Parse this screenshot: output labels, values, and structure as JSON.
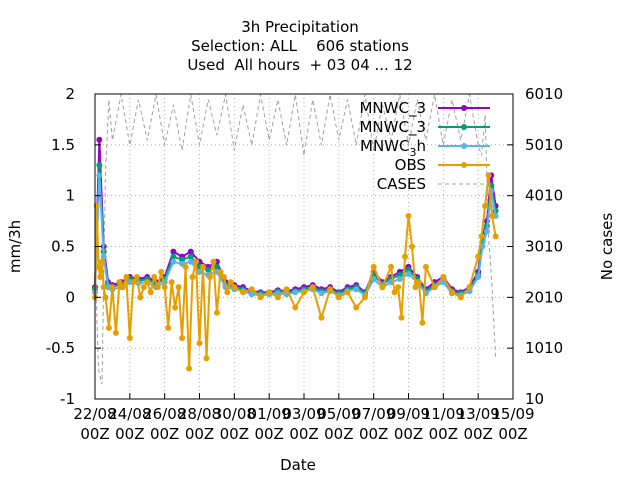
{
  "chart_data": {
    "type": "line",
    "title_lines": [
      "3h Precipitation",
      "Selection: ALL    606 stations",
      "Used  All hours  + 03 04 ... 12"
    ],
    "xlabel": "Date",
    "ylabel": "mm/3h",
    "y2label": "No cases",
    "ylim": [
      -1,
      2
    ],
    "yticks": [
      "-1",
      "-0.5",
      "0",
      "0.5",
      "1",
      "1.5",
      "2"
    ],
    "yticks_values": [
      -1,
      -0.5,
      0,
      0.5,
      1,
      1.5,
      2
    ],
    "y2lim": [
      10,
      6010
    ],
    "y2ticks": [
      "10",
      "1010",
      "2010",
      "3010",
      "4010",
      "5010",
      "6010"
    ],
    "y2ticks_values": [
      10,
      1010,
      2010,
      3010,
      4010,
      5010,
      6010
    ],
    "xticks": [
      "22/08\n00Z",
      "24/08\n00Z",
      "26/08\n00Z",
      "28/08\n00Z",
      "30/08\n00Z",
      "01/09\n00Z",
      "03/09\n00Z",
      "05/09\n00Z",
      "07/09\n00Z",
      "09/09\n00Z",
      "11/09\n00Z",
      "13/09\n00Z",
      "15/09\n00Z"
    ],
    "xticks_days": [
      0,
      2,
      4,
      6,
      8,
      10,
      12,
      14,
      16,
      18,
      20,
      22,
      24
    ],
    "xlim_days": [
      0,
      24
    ],
    "grid": true,
    "legend_position": "top-right",
    "series": [
      {
        "name": "MNWC_3",
        "color": "#9400d3",
        "axis": "y",
        "style": "line-points",
        "x": [
          0,
          0.25,
          0.5,
          0.75,
          1,
          1.5,
          2,
          2.5,
          3,
          3.5,
          4,
          4.5,
          5,
          5.5,
          6,
          6.5,
          7,
          7.5,
          8,
          8.5,
          9,
          9.5,
          10,
          10.5,
          11,
          11.5,
          12,
          12.5,
          13,
          13.5,
          14,
          14.5,
          15,
          15.5,
          16,
          16.5,
          17,
          17.5,
          18,
          18.5,
          19,
          19.5,
          20,
          20.5,
          21,
          21.5,
          22,
          22.25,
          22.5,
          22.75,
          23
        ],
        "y": [
          0.1,
          1.55,
          0.5,
          0.15,
          0.12,
          0.15,
          0.2,
          0.18,
          0.2,
          0.15,
          0.2,
          0.45,
          0.4,
          0.45,
          0.35,
          0.3,
          0.35,
          0.15,
          0.12,
          0.1,
          0.06,
          0.05,
          0.05,
          0.07,
          0.06,
          0.08,
          0.1,
          0.12,
          0.08,
          0.1,
          0.05,
          0.1,
          0.12,
          0.05,
          0.25,
          0.15,
          0.2,
          0.25,
          0.3,
          0.2,
          0.08,
          0.15,
          0.2,
          0.08,
          0.05,
          0.1,
          0.25,
          0.6,
          0.75,
          1.2,
          0.9
        ]
      },
      {
        "name": "MNWC_3",
        "color": "#009e73",
        "axis": "y",
        "style": "line-points",
        "x": [
          0,
          0.25,
          0.5,
          0.75,
          1,
          1.5,
          2,
          2.5,
          3,
          3.5,
          4,
          4.5,
          5,
          5.5,
          6,
          6.5,
          7,
          7.5,
          8,
          8.5,
          9,
          9.5,
          10,
          10.5,
          11,
          11.5,
          12,
          12.5,
          13,
          13.5,
          14,
          14.5,
          15,
          15.5,
          16,
          16.5,
          17,
          17.5,
          18,
          18.5,
          19,
          19.5,
          20,
          20.5,
          21,
          21.5,
          22,
          22.25,
          22.5,
          22.75,
          23
        ],
        "y": [
          0.08,
          1.3,
          0.45,
          0.12,
          0.1,
          0.13,
          0.18,
          0.16,
          0.18,
          0.13,
          0.18,
          0.4,
          0.37,
          0.4,
          0.3,
          0.27,
          0.3,
          0.12,
          0.1,
          0.08,
          0.05,
          0.04,
          0.04,
          0.06,
          0.05,
          0.06,
          0.08,
          0.1,
          0.06,
          0.08,
          0.04,
          0.08,
          0.1,
          0.04,
          0.22,
          0.13,
          0.18,
          0.22,
          0.27,
          0.18,
          0.06,
          0.12,
          0.18,
          0.06,
          0.04,
          0.08,
          0.22,
          0.55,
          0.7,
          1.1,
          0.85
        ]
      },
      {
        "name": "MNWC3h",
        "legend_main": "MNWC",
        "legend_sub": "3",
        "legend_after": "h",
        "color": "#56b4e9",
        "axis": "y",
        "style": "line-points",
        "x": [
          0,
          0.25,
          0.5,
          0.75,
          1,
          1.5,
          2,
          2.5,
          3,
          3.5,
          4,
          4.5,
          5,
          5.5,
          6,
          6.5,
          7,
          7.5,
          8,
          8.5,
          9,
          9.5,
          10,
          10.5,
          11,
          11.5,
          12,
          12.5,
          13,
          13.5,
          14,
          14.5,
          15,
          15.5,
          16,
          16.5,
          17,
          17.5,
          18,
          18.5,
          19,
          19.5,
          20,
          20.5,
          21,
          21.5,
          22,
          22.25,
          22.5,
          22.75,
          23
        ],
        "y": [
          0.05,
          1.2,
          0.4,
          0.1,
          0.08,
          0.1,
          0.15,
          0.14,
          0.15,
          0.1,
          0.15,
          0.35,
          0.33,
          0.35,
          0.25,
          0.22,
          0.25,
          0.1,
          0.08,
          0.06,
          0.03,
          0.02,
          0.03,
          0.04,
          0.03,
          0.05,
          0.06,
          0.08,
          0.04,
          0.06,
          0.02,
          0.06,
          0.08,
          0.02,
          0.18,
          0.1,
          0.15,
          0.18,
          0.23,
          0.15,
          0.04,
          0.1,
          0.15,
          0.04,
          0.02,
          0.06,
          0.2,
          0.5,
          0.65,
          1.05,
          0.8
        ]
      },
      {
        "name": "OBS",
        "color": "#e69f00",
        "axis": "y",
        "style": "line-points",
        "x": [
          0,
          0.1,
          0.2,
          0.3,
          0.4,
          0.5,
          0.6,
          0.8,
          1,
          1.2,
          1.4,
          1.6,
          1.8,
          2,
          2.2,
          2.4,
          2.6,
          2.8,
          3,
          3.2,
          3.4,
          3.6,
          3.8,
          4,
          4.2,
          4.4,
          4.6,
          4.8,
          5,
          5.2,
          5.4,
          5.6,
          5.8,
          6,
          6.2,
          6.4,
          6.6,
          6.8,
          7,
          7.2,
          7.4,
          7.6,
          7.8,
          8,
          8.5,
          9,
          9.5,
          10,
          10.5,
          11,
          11.5,
          12,
          12.5,
          13,
          13.5,
          14,
          14.5,
          15,
          15.5,
          16,
          16.5,
          17,
          17.2,
          17.4,
          17.6,
          17.8,
          18,
          18.2,
          18.4,
          18.6,
          18.8,
          19,
          19.5,
          20,
          20.5,
          21,
          21.5,
          22,
          22.2,
          22.4,
          22.6,
          22.8,
          23
        ],
        "y": [
          0.0,
          0.9,
          0.3,
          0.2,
          0.35,
          0.1,
          0.0,
          -0.3,
          0.1,
          -0.35,
          0.15,
          0.1,
          0.2,
          -0.4,
          0.15,
          0.2,
          0.0,
          0.1,
          0.15,
          0.05,
          0.2,
          0.1,
          0.25,
          0.1,
          -0.3,
          0.15,
          -0.1,
          0.1,
          -0.4,
          0.3,
          -0.7,
          0.2,
          0.35,
          -0.45,
          0.3,
          -0.6,
          0.2,
          0.35,
          -0.15,
          0.25,
          0.2,
          0.05,
          0.15,
          0.1,
          0.05,
          0.08,
          0.0,
          0.05,
          0.0,
          0.08,
          -0.1,
          0.05,
          0.1,
          -0.2,
          0.08,
          0.0,
          0.05,
          -0.1,
          0.0,
          0.3,
          0.1,
          0.3,
          0.05,
          0.1,
          -0.2,
          0.4,
          0.8,
          0.5,
          0.1,
          0.15,
          -0.25,
          0.3,
          0.1,
          0.2,
          0.05,
          0.0,
          0.1,
          0.4,
          0.6,
          0.9,
          1.2,
          0.8,
          0.6
        ]
      },
      {
        "name": "CASES",
        "color": "#a0a0a0",
        "axis": "y2",
        "style": "dashed",
        "x": [
          0,
          0.2,
          0.4,
          0.6,
          0.8,
          1,
          1.5,
          2,
          2.5,
          3,
          3.5,
          4,
          4.5,
          5,
          5.5,
          6,
          6.5,
          7,
          7.5,
          8,
          8.5,
          9,
          9.5,
          10,
          10.5,
          11,
          11.5,
          12,
          12.5,
          13,
          13.5,
          14,
          14.5,
          15,
          15.5,
          16,
          16.5,
          17,
          17.5,
          18,
          18.5,
          19,
          19.5,
          20,
          20.5,
          21,
          21.5,
          22,
          22.2,
          22.4,
          22.6,
          22.8,
          23
        ],
        "y": [
          2800,
          600,
          300,
          4500,
          5900,
          5100,
          6000,
          5000,
          5900,
          5100,
          6000,
          5000,
          5800,
          4900,
          6000,
          5000,
          5900,
          5200,
          6000,
          4900,
          5800,
          5000,
          6000,
          5100,
          5900,
          5000,
          6000,
          4800,
          5900,
          5000,
          6000,
          5100,
          5900,
          5000,
          6000,
          4900,
          5800,
          5100,
          6000,
          5000,
          5900,
          5100,
          6000,
          5000,
          5900,
          5100,
          6000,
          5000,
          4800,
          5600,
          3200,
          2200,
          800
        ]
      }
    ]
  }
}
